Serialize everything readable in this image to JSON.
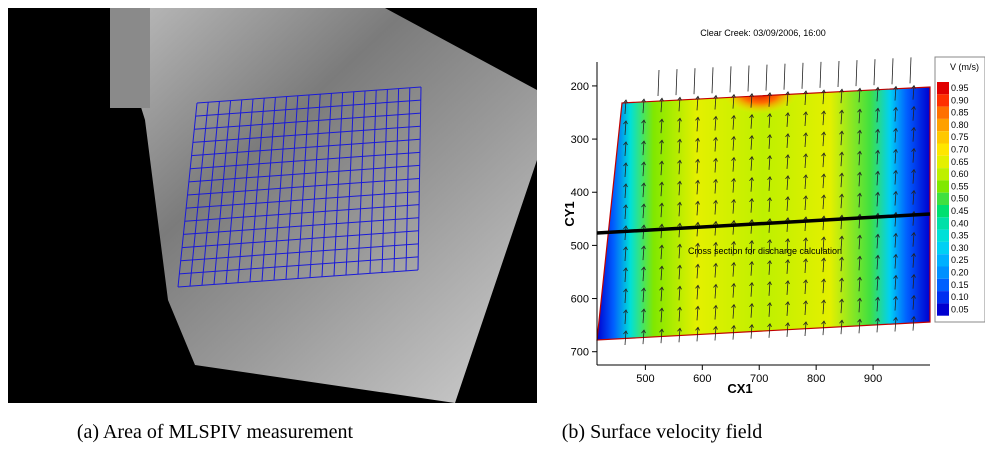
{
  "figure": {
    "panels": [
      {
        "caption": "(a) Area of MLSPIV measurement"
      },
      {
        "caption": "(b) Surface velocity field"
      }
    ]
  },
  "chart_data": {
    "type": "contour",
    "title": "Clear Creek: 03/09/2006, 16:00",
    "x_label": "CX1",
    "y_label": "CY1",
    "xlim": [
      415,
      1000
    ],
    "xticks": [
      500,
      600,
      700,
      800,
      900
    ],
    "ylim": [
      725,
      155
    ],
    "yticks": [
      200,
      300,
      400,
      500,
      600,
      700
    ],
    "annotation": "Cross section for discharge calculation",
    "legend": {
      "title": "V (m/s)",
      "levels": [
        {
          "value": 0.95,
          "color": "#e00000"
        },
        {
          "value": 0.9,
          "label": "0.90",
          "color": "#ff3000"
        },
        {
          "value": 0.85,
          "color": "#ff7000"
        },
        {
          "value": 0.8,
          "label": "0.80",
          "color": "#ffa000"
        },
        {
          "value": 0.75,
          "color": "#ffc800"
        },
        {
          "value": 0.7,
          "label": "0.70",
          "color": "#ffe600"
        },
        {
          "value": 0.65,
          "color": "#e4f000"
        },
        {
          "value": 0.6,
          "label": "0.60",
          "color": "#bef000"
        },
        {
          "value": 0.55,
          "color": "#80e800"
        },
        {
          "value": 0.5,
          "label": "0.50",
          "color": "#40e040"
        },
        {
          "value": 0.45,
          "color": "#00e070"
        },
        {
          "value": 0.4,
          "label": "0.40",
          "color": "#00e0a8"
        },
        {
          "value": 0.35,
          "color": "#00e0d8"
        },
        {
          "value": 0.3,
          "label": "0.30",
          "color": "#00d0f4"
        },
        {
          "value": 0.25,
          "color": "#00b0ff"
        },
        {
          "value": 0.2,
          "label": "0.20",
          "color": "#0090ff"
        },
        {
          "value": 0.15,
          "color": "#0060ff"
        },
        {
          "value": 0.1,
          "label": "0.10",
          "color": "#0030f0"
        },
        {
          "value": 0.05,
          "color": "#0000d0"
        }
      ]
    }
  }
}
